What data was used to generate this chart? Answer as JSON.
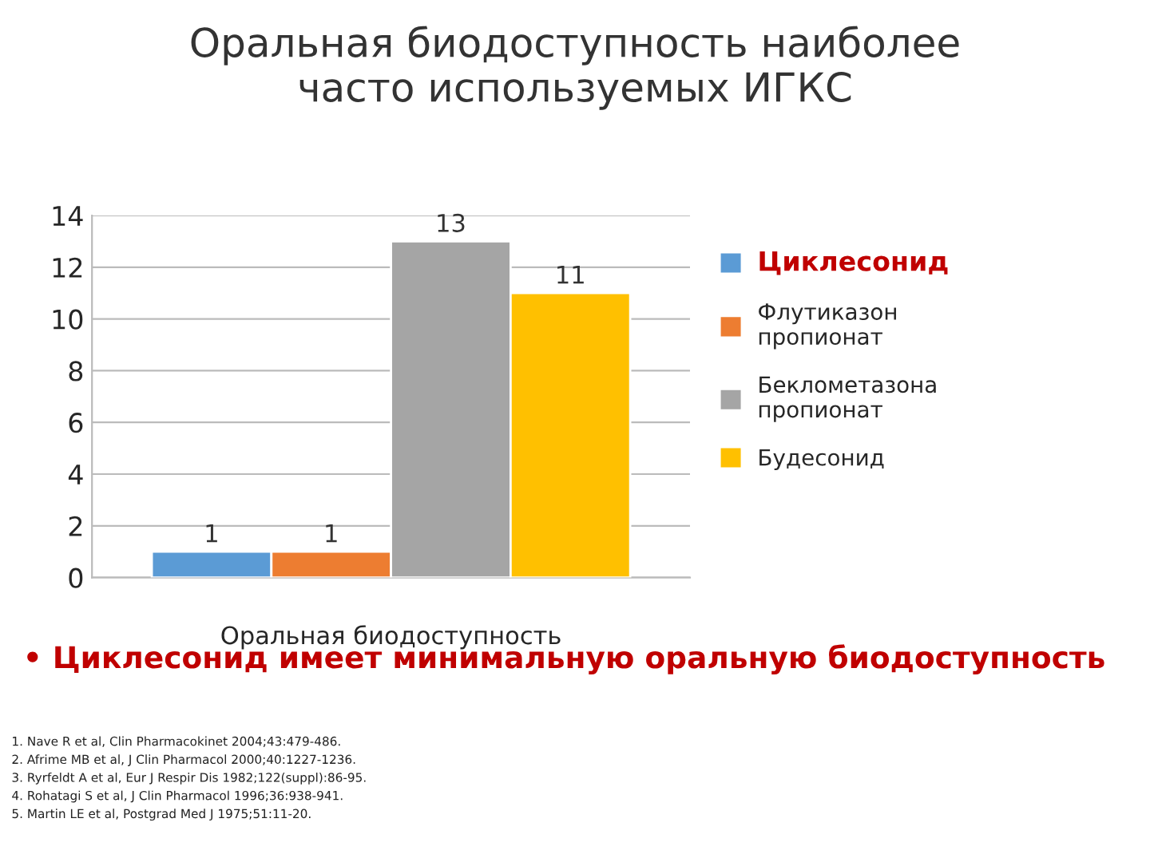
{
  "chart_data": {
    "type": "bar",
    "title": "Оральная биодоступность наиболее\nчасто используемых ИГКС",
    "categories": [
      "Оральная биодоступность"
    ],
    "series": [
      {
        "name": "Циклесонид",
        "color": "#5b9bd5",
        "values": [
          1
        ]
      },
      {
        "name": "Флутиказон\nпропионат",
        "color": "#ed7d31",
        "values": [
          1
        ]
      },
      {
        "name": "Беклометазона\nпропионат",
        "color": "#a5a5a5",
        "values": [
          13
        ]
      },
      {
        "name": "Будесонид",
        "color": "#ffc000",
        "values": [
          11
        ]
      }
    ],
    "ylim": [
      0,
      14
    ],
    "yticks": [
      0,
      2,
      4,
      6,
      8,
      10,
      12,
      14
    ],
    "grid": "y",
    "legend": "right",
    "data_labels": true,
    "annotations": [
      "• Циклесонид имеет минимальную оральную биодоступность",
      "1. Nave R et al, Clin Pharmacokinet 2004;43:479-486.",
      "2. Afrime MB et al, J Clin Pharmacol 2000;40:1227-1236.",
      "3. Ryrfeldt A et al, Eur J Respir Dis 1982;122(suppl):86-95.",
      "4. Rohatagi S et al, J Clin Pharmacol 1996;36:938-941.",
      "5. Martin LE et al, Postgrad Med J 1975;51:11-20."
    ]
  }
}
